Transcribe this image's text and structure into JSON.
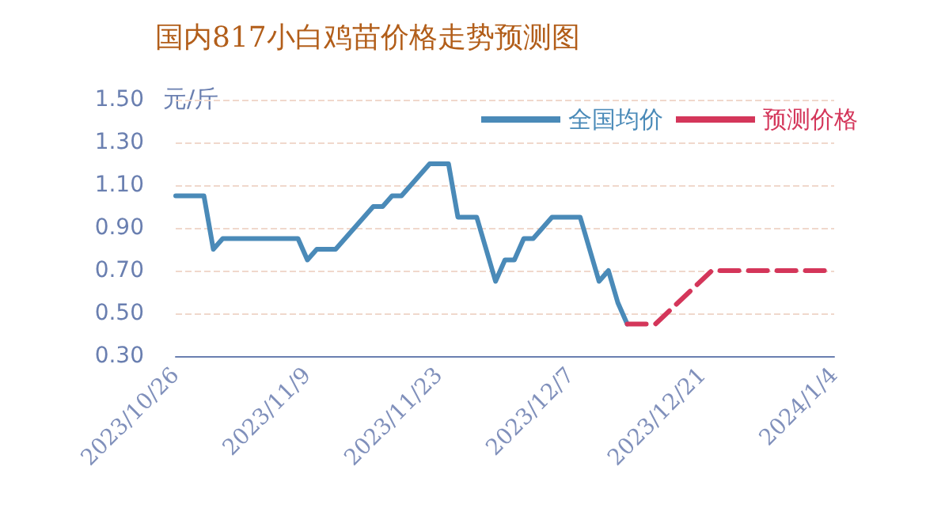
{
  "chart_data": {
    "type": "line",
    "title": "国内817小白鸡苗价格走势预测图",
    "ylabel": "元/斤",
    "ylim": [
      0.3,
      1.5
    ],
    "yticks": [
      {
        "value": 0.3,
        "label": "0.30"
      },
      {
        "value": 0.5,
        "label": "0.50"
      },
      {
        "value": 0.7,
        "label": "0.70"
      },
      {
        "value": 0.9,
        "label": "0.90"
      },
      {
        "value": 1.1,
        "label": "1.10"
      },
      {
        "value": 1.3,
        "label": "1.30"
      },
      {
        "value": 1.5,
        "label": "1.50"
      }
    ],
    "xlim": [
      "2023-10-26",
      "2024-01-04"
    ],
    "xticks": [
      {
        "value": "2023-10-26",
        "label": "2023/10/26"
      },
      {
        "value": "2023-11-09",
        "label": "2023/11/9"
      },
      {
        "value": "2023-11-23",
        "label": "2023/11/23"
      },
      {
        "value": "2023-12-07",
        "label": "2023/12/7"
      },
      {
        "value": "2023-12-21",
        "label": "2023/12/21"
      },
      {
        "value": "2024-01-04",
        "label": "2024/1/4"
      }
    ],
    "grid": "y",
    "legend": "top right",
    "marker": "none",
    "series": [
      {
        "name": "全国均价",
        "color": "#4a8ab8",
        "line_style": "solid",
        "x": [
          "2023-10-26",
          "2023-10-29",
          "2023-10-30",
          "2023-10-31",
          "2023-11-08",
          "2023-11-09",
          "2023-11-10",
          "2023-11-12",
          "2023-11-16",
          "2023-11-17",
          "2023-11-18",
          "2023-11-19",
          "2023-11-20",
          "2023-11-22",
          "2023-11-24",
          "2023-11-25",
          "2023-11-27",
          "2023-11-29",
          "2023-11-30",
          "2023-12-01",
          "2023-12-02",
          "2023-12-03",
          "2023-12-05",
          "2023-12-08",
          "2023-12-10",
          "2023-12-11",
          "2023-12-12",
          "2023-12-13"
        ],
        "values": [
          1.05,
          1.05,
          0.8,
          0.85,
          0.85,
          0.75,
          0.8,
          0.8,
          1.0,
          1.0,
          1.05,
          1.05,
          1.1,
          1.2,
          1.2,
          0.95,
          0.95,
          0.65,
          0.75,
          0.75,
          0.85,
          0.85,
          0.95,
          0.95,
          0.65,
          0.7,
          0.55,
          0.45
        ]
      },
      {
        "name": "预测价格",
        "color": "#d4365a",
        "line_style": "dashed",
        "x": [
          "2023-12-13",
          "2023-12-16",
          "2023-12-22",
          "2024-01-03"
        ],
        "values": [
          0.45,
          0.45,
          0.7,
          0.7
        ]
      }
    ]
  }
}
